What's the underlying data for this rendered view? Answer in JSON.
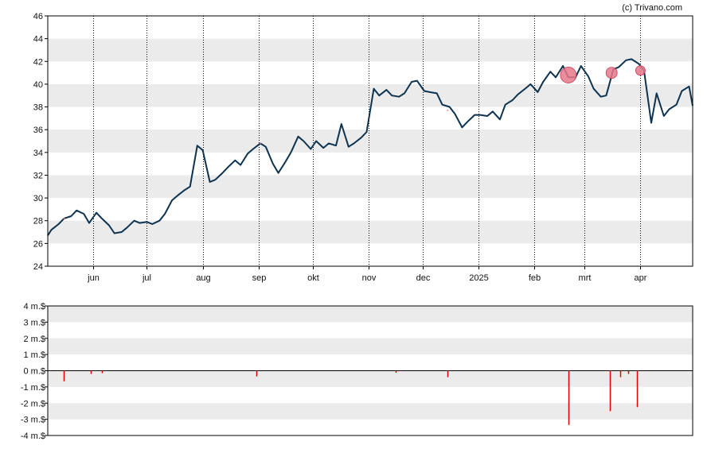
{
  "copyright": "(c) Trivano.com",
  "colors": {
    "band": "#ebebeb",
    "line": "#0d3350",
    "marker": "#e8788c",
    "marker_stroke": "#c43a52",
    "volume": "#e00000",
    "axis": "#000000"
  },
  "chart_data": [
    {
      "type": "line",
      "name": "price",
      "ylim": [
        24,
        46
      ],
      "yticks": [
        24,
        26,
        28,
        30,
        32,
        34,
        36,
        38,
        40,
        42,
        44,
        46
      ],
      "shaded_bands": [
        [
          26,
          28
        ],
        [
          30,
          32
        ],
        [
          34,
          36
        ],
        [
          38,
          40
        ],
        [
          42,
          44
        ]
      ],
      "grid": "dotted vertical lines at month starts",
      "xlim": [
        "2024-05-07",
        "2025-04-30"
      ],
      "xticks": [
        {
          "label": "jun",
          "date": "2024-06-01"
        },
        {
          "label": "jul",
          "date": "2024-07-01"
        },
        {
          "label": "aug",
          "date": "2024-08-01"
        },
        {
          "label": "sep",
          "date": "2024-09-01"
        },
        {
          "label": "okt",
          "date": "2024-10-01"
        },
        {
          "label": "nov",
          "date": "2024-11-01"
        },
        {
          "label": "dec",
          "date": "2024-12-01"
        },
        {
          "label": "2025",
          "date": "2025-01-01"
        },
        {
          "label": "feb",
          "date": "2025-02-01"
        },
        {
          "label": "mrt",
          "date": "2025-03-01"
        },
        {
          "label": "apr",
          "date": "2025-04-01"
        }
      ],
      "series": [
        {
          "points": [
            [
              "2024-05-07",
              26.7
            ],
            [
              "2024-05-09",
              27.2
            ],
            [
              "2024-05-13",
              27.7
            ],
            [
              "2024-05-16",
              28.2
            ],
            [
              "2024-05-20",
              28.4
            ],
            [
              "2024-05-23",
              28.9
            ],
            [
              "2024-05-27",
              28.6
            ],
            [
              "2024-05-30",
              27.8
            ],
            [
              "2024-06-03",
              28.7
            ],
            [
              "2024-06-06",
              28.2
            ],
            [
              "2024-06-10",
              27.6
            ],
            [
              "2024-06-13",
              26.9
            ],
            [
              "2024-06-17",
              27.0
            ],
            [
              "2024-06-20",
              27.4
            ],
            [
              "2024-06-24",
              28.0
            ],
            [
              "2024-06-27",
              27.8
            ],
            [
              "2024-07-01",
              27.9
            ],
            [
              "2024-07-04",
              27.7
            ],
            [
              "2024-07-08",
              28.0
            ],
            [
              "2024-07-11",
              28.6
            ],
            [
              "2024-07-15",
              29.8
            ],
            [
              "2024-07-18",
              30.2
            ],
            [
              "2024-07-22",
              30.7
            ],
            [
              "2024-07-25",
              31.0
            ],
            [
              "2024-07-29",
              34.6
            ],
            [
              "2024-08-01",
              34.2
            ],
            [
              "2024-08-05",
              31.4
            ],
            [
              "2024-08-08",
              31.6
            ],
            [
              "2024-08-12",
              32.2
            ],
            [
              "2024-08-15",
              32.7
            ],
            [
              "2024-08-19",
              33.3
            ],
            [
              "2024-08-22",
              32.9
            ],
            [
              "2024-08-26",
              33.9
            ],
            [
              "2024-08-29",
              34.3
            ],
            [
              "2024-09-02",
              34.8
            ],
            [
              "2024-09-05",
              34.5
            ],
            [
              "2024-09-09",
              33.0
            ],
            [
              "2024-09-12",
              32.2
            ],
            [
              "2024-09-16",
              33.2
            ],
            [
              "2024-09-19",
              34.0
            ],
            [
              "2024-09-23",
              35.4
            ],
            [
              "2024-09-26",
              35.0
            ],
            [
              "2024-09-30",
              34.3
            ],
            [
              "2024-10-03",
              35.0
            ],
            [
              "2024-10-07",
              34.4
            ],
            [
              "2024-10-10",
              34.8
            ],
            [
              "2024-10-14",
              34.6
            ],
            [
              "2024-10-17",
              36.5
            ],
            [
              "2024-10-21",
              34.5
            ],
            [
              "2024-10-24",
              34.8
            ],
            [
              "2024-10-28",
              35.3
            ],
            [
              "2024-10-31",
              35.8
            ],
            [
              "2024-11-04",
              39.6
            ],
            [
              "2024-11-07",
              39.0
            ],
            [
              "2024-11-11",
              39.5
            ],
            [
              "2024-11-14",
              39.0
            ],
            [
              "2024-11-18",
              38.9
            ],
            [
              "2024-11-21",
              39.2
            ],
            [
              "2024-11-25",
              40.2
            ],
            [
              "2024-11-28",
              40.3
            ],
            [
              "2024-12-02",
              39.4
            ],
            [
              "2024-12-05",
              39.3
            ],
            [
              "2024-12-09",
              39.2
            ],
            [
              "2024-12-12",
              38.2
            ],
            [
              "2024-12-16",
              38.0
            ],
            [
              "2024-12-19",
              37.4
            ],
            [
              "2024-12-23",
              36.2
            ],
            [
              "2024-12-26",
              36.7
            ],
            [
              "2024-12-30",
              37.3
            ],
            [
              "2025-01-02",
              37.3
            ],
            [
              "2025-01-06",
              37.2
            ],
            [
              "2025-01-09",
              37.6
            ],
            [
              "2025-01-13",
              36.9
            ],
            [
              "2025-01-16",
              38.2
            ],
            [
              "2025-01-20",
              38.6
            ],
            [
              "2025-01-23",
              39.1
            ],
            [
              "2025-01-27",
              39.6
            ],
            [
              "2025-01-30",
              40.0
            ],
            [
              "2025-02-03",
              39.3
            ],
            [
              "2025-02-06",
              40.2
            ],
            [
              "2025-02-10",
              41.1
            ],
            [
              "2025-02-13",
              40.6
            ],
            [
              "2025-02-17",
              41.6
            ],
            [
              "2025-02-20",
              40.6
            ],
            [
              "2025-02-24",
              40.6
            ],
            [
              "2025-02-27",
              41.6
            ],
            [
              "2025-03-03",
              40.7
            ],
            [
              "2025-03-06",
              39.6
            ],
            [
              "2025-03-10",
              38.9
            ],
            [
              "2025-03-13",
              39.0
            ],
            [
              "2025-03-17",
              41.3
            ],
            [
              "2025-03-20",
              41.5
            ],
            [
              "2025-03-24",
              42.1
            ],
            [
              "2025-03-27",
              42.2
            ],
            [
              "2025-03-31",
              41.8
            ],
            [
              "2025-04-03",
              41.2
            ],
            [
              "2025-04-07",
              36.6
            ],
            [
              "2025-04-10",
              39.2
            ],
            [
              "2025-04-14",
              37.2
            ],
            [
              "2025-04-17",
              37.8
            ],
            [
              "2025-04-21",
              38.2
            ],
            [
              "2025-04-24",
              39.4
            ],
            [
              "2025-04-28",
              39.8
            ],
            [
              "2025-04-30",
              38.1
            ]
          ]
        }
      ],
      "markers": [
        {
          "date": "2024-05-16",
          "value": 28.2,
          "size": 1
        },
        {
          "date": "2024-09-02",
          "value": 34.8,
          "size": 1
        },
        {
          "date": "2024-12-15",
          "value": 37.7,
          "size": 1
        },
        {
          "date": "2025-02-20",
          "value": 40.8,
          "size": 10
        },
        {
          "date": "2025-03-16",
          "value": 41.0,
          "size": 7
        },
        {
          "date": "2025-04-01",
          "value": 41.2,
          "size": 6
        }
      ]
    },
    {
      "type": "bar",
      "name": "volume",
      "ylim": [
        -4,
        4
      ],
      "yticks": [
        {
          "label": "4 m.$",
          "value": 4
        },
        {
          "label": "3 m.$",
          "value": 3
        },
        {
          "label": "2 m.$",
          "value": 2
        },
        {
          "label": "1 m.$",
          "value": 1
        },
        {
          "label": "0 m.$",
          "value": 0
        },
        {
          "label": "-1 m.$",
          "value": -1
        },
        {
          "label": "-2 m.$",
          "value": -2
        },
        {
          "label": "-3 m.$",
          "value": -3
        },
        {
          "label": "-4 m.$",
          "value": -4
        }
      ],
      "shaded_bands": [
        [
          3,
          4
        ],
        [
          1,
          2
        ],
        [
          -1,
          0
        ],
        [
          -3,
          -2
        ]
      ],
      "bars": [
        {
          "date": "2024-05-16",
          "value": -0.65
        },
        {
          "date": "2024-05-31",
          "value": -0.2
        },
        {
          "date": "2024-06-06",
          "value": -0.15
        },
        {
          "date": "2024-08-31",
          "value": -0.35
        },
        {
          "date": "2024-11-16",
          "value": -0.12
        },
        {
          "date": "2024-12-15",
          "value": -0.4
        },
        {
          "date": "2025-02-20",
          "value": -3.35
        },
        {
          "date": "2025-03-15",
          "value": -2.5
        },
        {
          "date": "2025-03-21",
          "value": -0.4
        },
        {
          "date": "2025-03-25",
          "value": -0.2
        },
        {
          "date": "2025-03-30",
          "value": -2.25
        }
      ]
    }
  ]
}
